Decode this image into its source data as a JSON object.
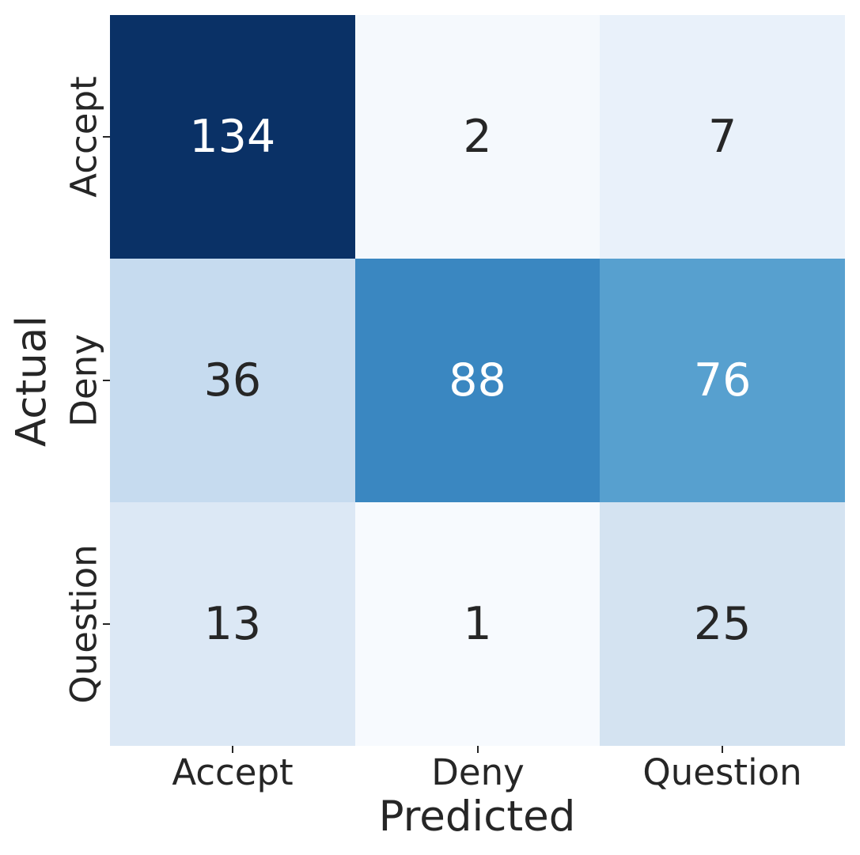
{
  "figure": {
    "background": "#ffffff",
    "text_color": "#262626"
  },
  "chart_data": {
    "type": "heatmap",
    "title": "",
    "xlabel": "Predicted",
    "ylabel": "Actual",
    "x_categories": [
      "Accept",
      "Deny",
      "Question"
    ],
    "y_categories": [
      "Accept",
      "Deny",
      "Question"
    ],
    "rows": [
      {
        "label": "Accept",
        "values": [
          134,
          2,
          7
        ]
      },
      {
        "label": "Deny",
        "values": [
          36,
          88,
          76
        ]
      },
      {
        "label": "Question",
        "values": [
          13,
          1,
          25
        ]
      }
    ],
    "value_min": 1,
    "value_max": 134,
    "colormap": "Blues",
    "legend": "none",
    "grid": false,
    "cell_colors": [
      [
        "#0a3166",
        "#f5f9fd",
        "#e9f1fa"
      ],
      [
        "#c6dbef",
        "#3a87c1",
        "#57a0cf"
      ],
      [
        "#dce8f5",
        "#f7fafe",
        "#d4e3f1"
      ]
    ],
    "cell_text_colors": [
      [
        "#ffffff",
        "#262626",
        "#262626"
      ],
      [
        "#262626",
        "#ffffff",
        "#ffffff"
      ],
      [
        "#262626",
        "#262626",
        "#262626"
      ]
    ]
  }
}
